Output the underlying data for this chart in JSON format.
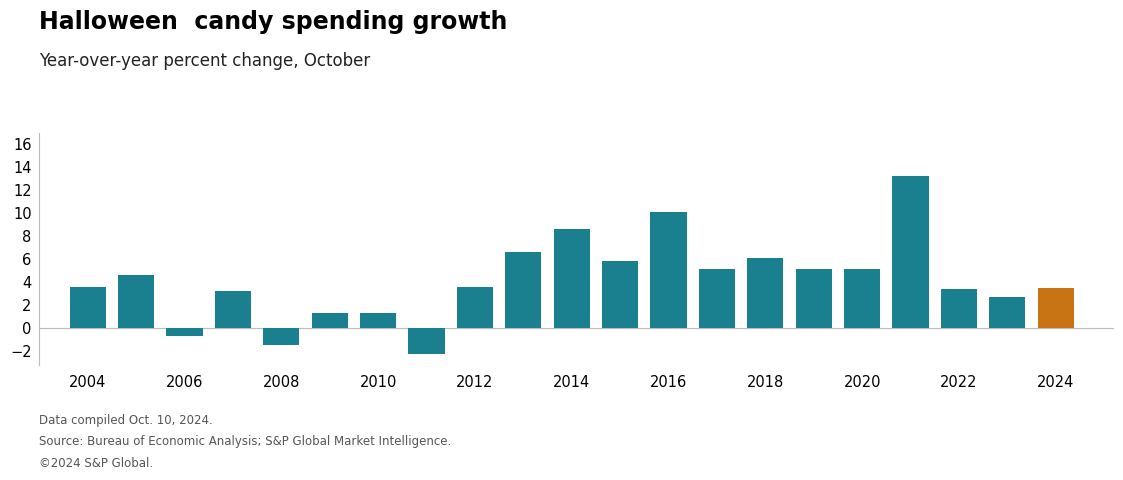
{
  "title": "Halloween  candy spending growth",
  "subtitle": "Year-over-year percent change, October",
  "years": [
    2004,
    2005,
    2006,
    2007,
    2008,
    2009,
    2010,
    2011,
    2012,
    2013,
    2014,
    2015,
    2016,
    2017,
    2018,
    2019,
    2020,
    2021,
    2022,
    2023,
    2024
  ],
  "values": [
    3.6,
    4.6,
    -0.7,
    3.2,
    -1.5,
    1.3,
    1.3,
    -2.3,
    3.6,
    6.6,
    8.6,
    5.8,
    10.1,
    5.1,
    6.1,
    5.1,
    5.1,
    13.2,
    3.4,
    2.7,
    3.5
  ],
  "teal_color": "#1a7f8e",
  "orange_color": "#c87414",
  "background_color": "#ffffff",
  "ylim": [
    -3.2,
    17
  ],
  "yticks": [
    -2,
    0,
    2,
    4,
    6,
    8,
    10,
    12,
    14,
    16
  ],
  "xticks": [
    2004,
    2006,
    2008,
    2010,
    2012,
    2014,
    2016,
    2018,
    2020,
    2022,
    2024
  ],
  "footer_lines": [
    "Data compiled Oct. 10, 2024.",
    "Source: Bureau of Economic Analysis; S&P Global Market Intelligence.",
    "©2024 S&P Global."
  ],
  "title_fontsize": 17,
  "subtitle_fontsize": 12,
  "footer_fontsize": 8.5,
  "tick_fontsize": 10.5
}
